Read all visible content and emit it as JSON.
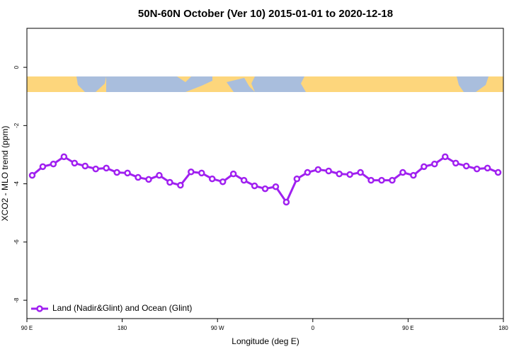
{
  "chart_data": {
    "type": "line",
    "title": "50N-60N October (Ver 10)   2015-01-01 to 2020-12-18",
    "x_label": "Longitude (deg E)",
    "y_label": "XCO2 - MLO trend (ppm)",
    "x": [
      95,
      105,
      115,
      125,
      135,
      145,
      155,
      165,
      175,
      185,
      195,
      205,
      215,
      225,
      235,
      245,
      255,
      265,
      275,
      285,
      295,
      305,
      315,
      325,
      335,
      345,
      355,
      365,
      375,
      385,
      395,
      405,
      415,
      425,
      435,
      445,
      455,
      465,
      475,
      485,
      495,
      505,
      515,
      525,
      535
    ],
    "series": [
      {
        "name": "Land (Nadir&Glint) and Ocean (Glint)",
        "color": "#a020f0",
        "values": [
          -3.71,
          -3.41,
          -3.32,
          -3.07,
          -3.29,
          -3.39,
          -3.49,
          -3.46,
          -3.61,
          -3.63,
          -3.78,
          -3.85,
          -3.71,
          -3.95,
          -4.05,
          -3.59,
          -3.63,
          -3.83,
          -3.93,
          -3.66,
          -3.88,
          -4.07,
          -4.17,
          -4.1,
          -4.63,
          -3.83,
          -3.61,
          -3.51,
          -3.56,
          -3.66,
          -3.68,
          -3.61,
          -3.88,
          -3.88,
          -3.88,
          -3.61,
          -3.71,
          -3.41,
          -3.32,
          -3.07,
          -3.29,
          -3.39,
          -3.49,
          -3.46,
          -3.61
        ]
      }
    ],
    "xlim": [
      90,
      540
    ],
    "xticks": [
      {
        "value": 90,
        "label": "90 E"
      },
      180,
      {
        "value": 270,
        "label": "90 W"
      },
      {
        "value": 360,
        "label": "0"
      },
      {
        "value": 450,
        "label": "90 E"
      },
      {
        "value": 540,
        "label": "180"
      }
    ],
    "ylim": [
      -8.63,
      1.34
    ],
    "yticks": [
      0,
      -2,
      -4,
      -6,
      -8
    ],
    "legend": "bottom-left"
  }
}
